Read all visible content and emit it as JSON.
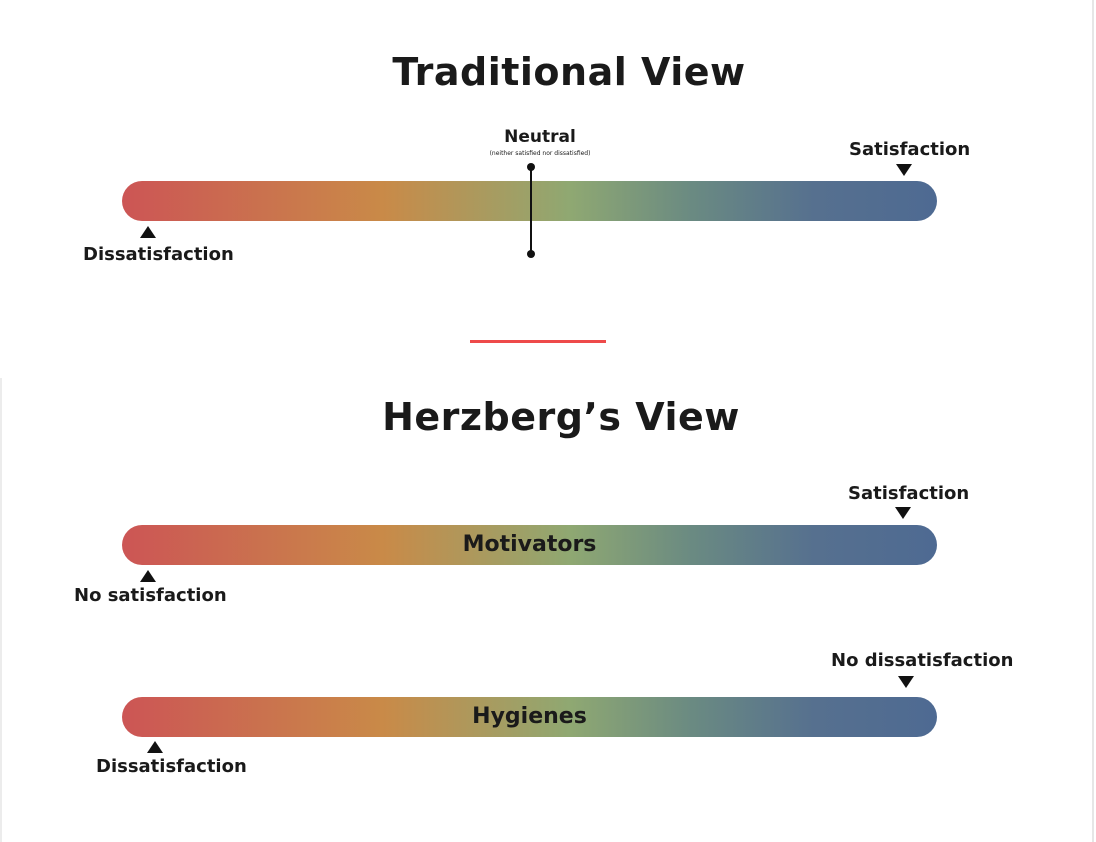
{
  "traditional": {
    "title": "Traditional View",
    "neutral_label": "Neutral",
    "neutral_sublabel": "(neither satisfied nor dissatisfied)",
    "left_label": "Dissatisfaction",
    "right_label": "Satisfaction"
  },
  "herzberg": {
    "title": "Herzberg’s View",
    "motivators": {
      "bar_label": "Motivators",
      "left_label": "No satisfaction",
      "right_label": "Satisfaction"
    },
    "hygienes": {
      "bar_label": "Hygienes",
      "left_label": "Dissatisfaction",
      "right_label": "No dissatisfaction"
    }
  },
  "colors": {
    "gradient_start": "#cc5555",
    "gradient_mid_orange": "#c98a48",
    "gradient_mid_green": "#8fa872",
    "gradient_end": "#4e6a92",
    "divider": "#ee4a4a"
  }
}
